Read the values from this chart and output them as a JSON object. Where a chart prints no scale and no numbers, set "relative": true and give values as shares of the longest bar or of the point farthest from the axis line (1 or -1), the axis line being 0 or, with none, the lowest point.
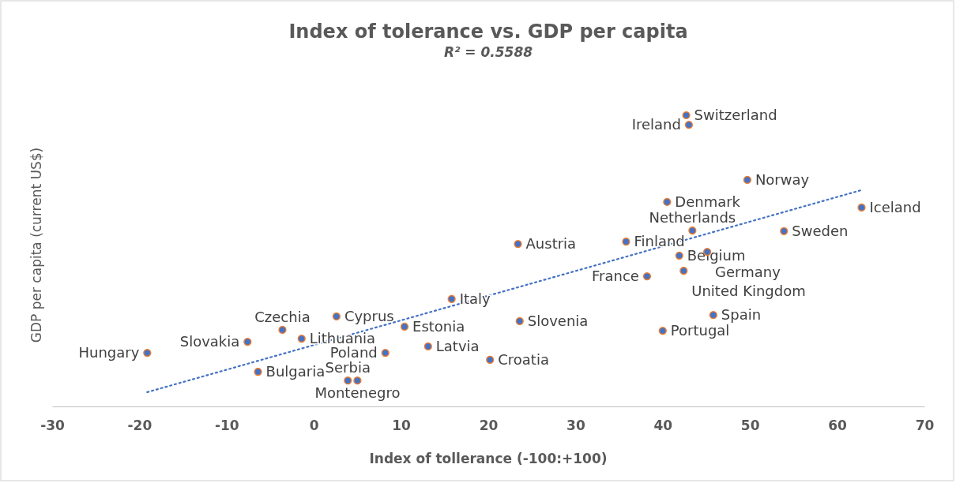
{
  "chart_data": {
    "type": "scatter",
    "title": "Index of tolerance vs. GDP per capita",
    "xlabel": "Index of tollerance (-100:+100)",
    "ylabel": "GDP per capita (current US$)",
    "relative": true,
    "xlim": [
      -30,
      70
    ],
    "xticks": [
      -30,
      -20,
      -10,
      0,
      10,
      20,
      30,
      40,
      50,
      60,
      70
    ],
    "grid": false,
    "series": [
      {
        "marker": "circle",
        "color": "#4472c4",
        "x": [
          42.7,
          43.0,
          49.7,
          62.8,
          40.5,
          43.4,
          53.9,
          23.4,
          35.8,
          41.9,
          45.1,
          42.4,
          38.2,
          15.8,
          2.6,
          45.8,
          23.6,
          -7.6,
          -3.6,
          -1.4,
          10.4,
          13.1,
          -19.1,
          8.2,
          20.2,
          40.0,
          -6.4,
          3.9,
          5.0
        ],
        "values": [
          1.0,
          0.967,
          0.778,
          0.683,
          0.702,
          0.604,
          0.602,
          0.558,
          0.566,
          0.518,
          0.531,
          0.466,
          0.447,
          0.369,
          0.309,
          0.314,
          0.293,
          0.222,
          0.263,
          0.233,
          0.274,
          0.206,
          0.184,
          0.184,
          0.16,
          0.26,
          0.119,
          0.089,
          0.089
        ]
      },
      {
        "type": "line",
        "color": "#4472c4",
        "line_style": "dotted",
        "x": [
          -19.1,
          62.8
        ],
        "values": [
          0.049,
          0.743
        ]
      }
    ],
    "annotations": [
      {
        "text": "Switzerland",
        "x": 42.7,
        "y": 1.0
      },
      {
        "text": "Ireland",
        "x": 43.0,
        "y": 0.967
      },
      {
        "text": "Norway",
        "x": 49.7,
        "y": 0.778
      },
      {
        "text": "Iceland",
        "x": 62.8,
        "y": 0.683
      },
      {
        "text": "Denmark",
        "x": 40.5,
        "y": 0.702
      },
      {
        "text": "Netherlands",
        "x": 43.4,
        "y": 0.604
      },
      {
        "text": "Sweden",
        "x": 53.9,
        "y": 0.602
      },
      {
        "text": "Austria",
        "x": 23.4,
        "y": 0.558
      },
      {
        "text": "Finland",
        "x": 35.8,
        "y": 0.566
      },
      {
        "text": "Belgium",
        "x": 41.9,
        "y": 0.518
      },
      {
        "text": "Germany",
        "x": 45.1,
        "y": 0.531
      },
      {
        "text": "United Kingdom",
        "x": 42.4,
        "y": 0.466
      },
      {
        "text": "France",
        "x": 38.2,
        "y": 0.447
      },
      {
        "text": "Italy",
        "x": 15.8,
        "y": 0.369
      },
      {
        "text": "Cyprus",
        "x": 2.6,
        "y": 0.309
      },
      {
        "text": "Spain",
        "x": 45.8,
        "y": 0.314
      },
      {
        "text": "Slovenia",
        "x": 23.6,
        "y": 0.293
      },
      {
        "text": "Slovakia",
        "x": -7.6,
        "y": 0.222
      },
      {
        "text": "Czechia",
        "x": -3.6,
        "y": 0.263
      },
      {
        "text": "Lithuania",
        "x": -1.4,
        "y": 0.233
      },
      {
        "text": "Estonia",
        "x": 10.4,
        "y": 0.274
      },
      {
        "text": "Latvia",
        "x": 13.1,
        "y": 0.206
      },
      {
        "text": "Hungary",
        "x": -19.1,
        "y": 0.184
      },
      {
        "text": "Poland",
        "x": 8.2,
        "y": 0.184
      },
      {
        "text": "Croatia",
        "x": 20.2,
        "y": 0.16
      },
      {
        "text": "Portugal",
        "x": 40.0,
        "y": 0.26
      },
      {
        "text": "Bulgaria",
        "x": -6.4,
        "y": 0.119
      },
      {
        "text": "Serbia",
        "x": 3.9,
        "y": 0.089
      },
      {
        "text": "Montenegro",
        "x": 5.0,
        "y": 0.089
      },
      "R² = 0.5588"
    ]
  }
}
